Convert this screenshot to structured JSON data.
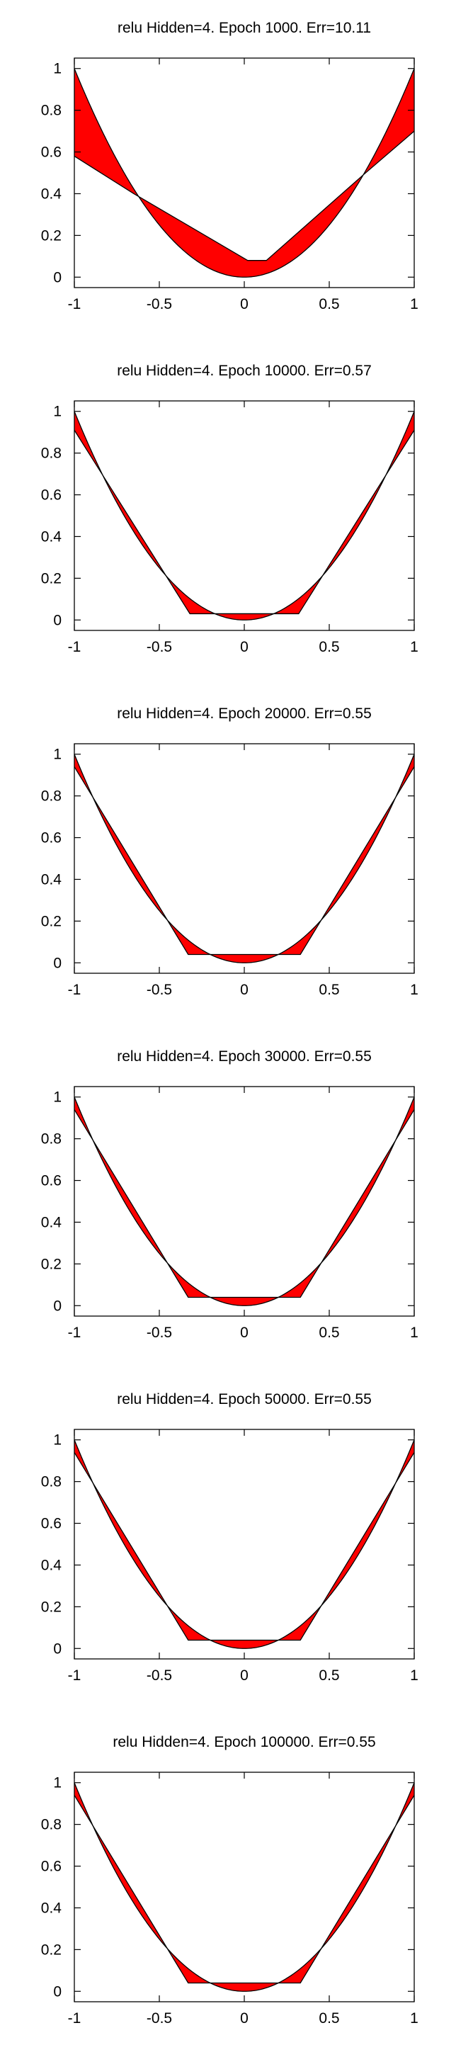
{
  "colors": {
    "fill": "#ff0000",
    "stroke": "#000000",
    "axis": "#000000",
    "background": "#ffffff"
  },
  "chart_data": [
    {
      "type": "area",
      "title": "relu Hidden=4. Epoch 1000. Err=10.11",
      "xlim": [
        -1,
        1
      ],
      "ylim": [
        -0.05,
        1.05
      ],
      "xticks": [
        -1,
        -0.5,
        0,
        0.5,
        1
      ],
      "xtick_labels": [
        "-1",
        "-0.5",
        "0",
        "0.5",
        "1"
      ],
      "yticks": [
        0,
        0.2,
        0.4,
        0.6,
        0.8,
        1
      ],
      "ytick_labels": [
        "0",
        "0.2",
        "0.4",
        "0.6",
        "0.8",
        "1"
      ],
      "grid": false,
      "target": {
        "name": "",
        "formula": "y = x^2"
      },
      "series": [
        {
          "name": "",
          "x": [
            -1,
            -0.65,
            0.02,
            0.13,
            0.7,
            1
          ],
          "y": [
            0.58,
            0.4,
            0.08,
            0.08,
            0.49,
            0.7
          ]
        }
      ]
    },
    {
      "type": "area",
      "title": "relu Hidden=4. Epoch 10000. Err=0.57",
      "xlim": [
        -1,
        1
      ],
      "ylim": [
        -0.05,
        1.05
      ],
      "xticks": [
        -1,
        -0.5,
        0,
        0.5,
        1
      ],
      "xtick_labels": [
        "-1",
        "-0.5",
        "0",
        "0.5",
        "1"
      ],
      "yticks": [
        0,
        0.2,
        0.4,
        0.6,
        0.8,
        1
      ],
      "ytick_labels": [
        "0",
        "0.2",
        "0.4",
        "0.6",
        "0.8",
        "1"
      ],
      "grid": false,
      "target": {
        "name": "",
        "formula": "y = x^2"
      },
      "series": [
        {
          "name": "",
          "x": [
            -1,
            -0.32,
            0.32,
            1
          ],
          "y": [
            0.91,
            0.03,
            0.03,
            0.91
          ]
        }
      ]
    },
    {
      "type": "area",
      "title": "relu Hidden=4. Epoch 20000. Err=0.55",
      "xlim": [
        -1,
        1
      ],
      "ylim": [
        -0.05,
        1.05
      ],
      "xticks": [
        -1,
        -0.5,
        0,
        0.5,
        1
      ],
      "xtick_labels": [
        "-1",
        "-0.5",
        "0",
        "0.5",
        "1"
      ],
      "yticks": [
        0,
        0.2,
        0.4,
        0.6,
        0.8,
        1
      ],
      "ytick_labels": [
        "0",
        "0.2",
        "0.4",
        "0.6",
        "0.8",
        "1"
      ],
      "grid": false,
      "target": {
        "name": "",
        "formula": "y = x^2"
      },
      "series": [
        {
          "name": "",
          "x": [
            -1,
            -0.33,
            0.33,
            1
          ],
          "y": [
            0.94,
            0.04,
            0.04,
            0.94
          ]
        }
      ]
    },
    {
      "type": "area",
      "title": "relu Hidden=4. Epoch 30000. Err=0.55",
      "xlim": [
        -1,
        1
      ],
      "ylim": [
        -0.05,
        1.05
      ],
      "xticks": [
        -1,
        -0.5,
        0,
        0.5,
        1
      ],
      "xtick_labels": [
        "-1",
        "-0.5",
        "0",
        "0.5",
        "1"
      ],
      "yticks": [
        0,
        0.2,
        0.4,
        0.6,
        0.8,
        1
      ],
      "ytick_labels": [
        "0",
        "0.2",
        "0.4",
        "0.6",
        "0.8",
        "1"
      ],
      "grid": false,
      "target": {
        "name": "",
        "formula": "y = x^2"
      },
      "series": [
        {
          "name": "",
          "x": [
            -1,
            -0.33,
            0.33,
            1
          ],
          "y": [
            0.94,
            0.04,
            0.04,
            0.94
          ]
        }
      ]
    },
    {
      "type": "area",
      "title": "relu Hidden=4. Epoch 50000. Err=0.55",
      "xlim": [
        -1,
        1
      ],
      "ylim": [
        -0.05,
        1.05
      ],
      "xticks": [
        -1,
        -0.5,
        0,
        0.5,
        1
      ],
      "xtick_labels": [
        "-1",
        "-0.5",
        "0",
        "0.5",
        "1"
      ],
      "yticks": [
        0,
        0.2,
        0.4,
        0.6,
        0.8,
        1
      ],
      "ytick_labels": [
        "0",
        "0.2",
        "0.4",
        "0.6",
        "0.8",
        "1"
      ],
      "grid": false,
      "target": {
        "name": "",
        "formula": "y = x^2"
      },
      "series": [
        {
          "name": "",
          "x": [
            -1,
            -0.33,
            0.33,
            1
          ],
          "y": [
            0.94,
            0.04,
            0.04,
            0.94
          ]
        }
      ]
    },
    {
      "type": "area",
      "title": "relu Hidden=4. Epoch 100000. Err=0.55",
      "xlim": [
        -1,
        1
      ],
      "ylim": [
        -0.05,
        1.05
      ],
      "xticks": [
        -1,
        -0.5,
        0,
        0.5,
        1
      ],
      "xtick_labels": [
        "-1",
        "-0.5",
        "0",
        "0.5",
        "1"
      ],
      "yticks": [
        0,
        0.2,
        0.4,
        0.6,
        0.8,
        1
      ],
      "ytick_labels": [
        "0",
        "0.2",
        "0.4",
        "0.6",
        "0.8",
        "1"
      ],
      "grid": false,
      "target": {
        "name": "",
        "formula": "y = x^2"
      },
      "series": [
        {
          "name": "",
          "x": [
            -1,
            -0.33,
            0.33,
            1
          ],
          "y": [
            0.94,
            0.04,
            0.04,
            0.94
          ]
        }
      ]
    }
  ]
}
